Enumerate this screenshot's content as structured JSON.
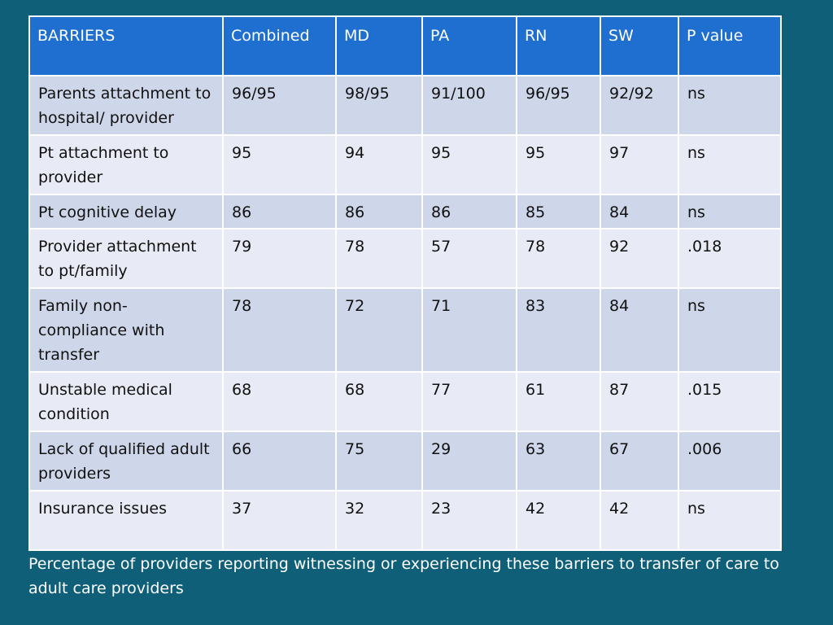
{
  "table": {
    "headers": [
      "BARRIERS",
      "Combined",
      "MD",
      "PA",
      "RN",
      "SW",
      "P value"
    ],
    "rows": [
      [
        "Parents attachment to hospital/ provider",
        "96/95",
        "98/95",
        "91/100",
        "96/95",
        "92/92",
        "ns"
      ],
      [
        "Pt attachment to provider",
        "95",
        "94",
        "95",
        "95",
        "97",
        "ns"
      ],
      [
        "Pt cognitive delay",
        "86",
        "86",
        "86",
        "85",
        "84",
        "ns"
      ],
      [
        "Provider attachment to pt/family",
        "79",
        "78",
        "57",
        "78",
        "92",
        ".018"
      ],
      [
        "Family non-compliance with transfer",
        "78",
        "72",
        "71",
        "83",
        "84",
        "ns"
      ],
      [
        "Unstable medical condition",
        "68",
        "68",
        "77",
        "61",
        "87",
        ".015"
      ],
      [
        "Lack of qualified adult providers",
        "66",
        "75",
        "29",
        "63",
        "67",
        ".006"
      ],
      [
        "Insurance issues",
        "37",
        "32",
        "23",
        "42",
        "42",
        "ns"
      ]
    ]
  },
  "caption": "Percentage of providers reporting witnessing or experiencing these barriers to transfer of care to adult care providers",
  "colors": {
    "background": "#0f5f78",
    "header": "#1f6fd0",
    "row_band_dark": "#ced6e9",
    "row_band_light": "#e8ebf5"
  }
}
